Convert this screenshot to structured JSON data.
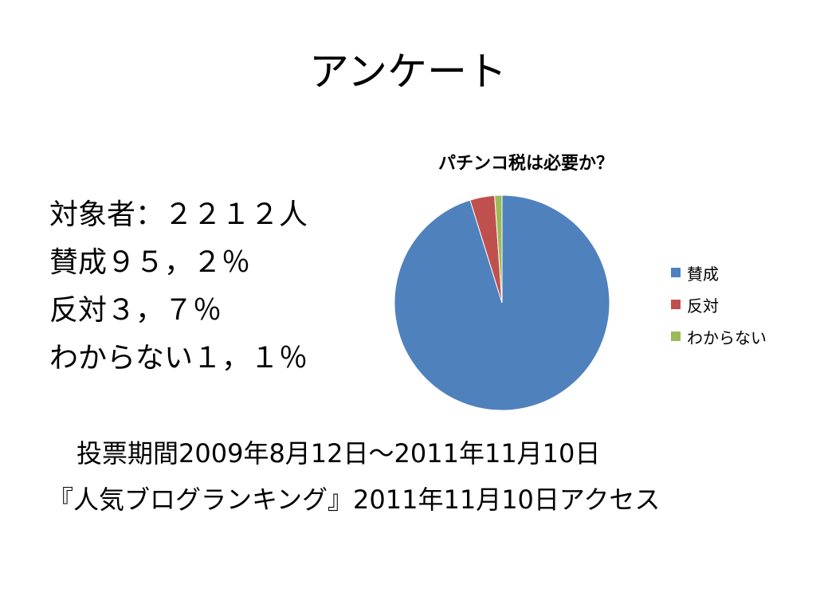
{
  "slide": {
    "title": "アンケート"
  },
  "stats": [
    "対象者：２２１２人",
    "賛成９５，２％",
    "反対３，７％",
    "わからない１，１％"
  ],
  "footer": {
    "period": "投票期間2009年8月12日～2011年11月10日",
    "source": "『人気ブログランキング』2011年11月10日アクセス"
  },
  "colors": {
    "agree": "#4F81BD",
    "disagree": "#C0504D",
    "unknown": "#9BBB59"
  },
  "chart_data": {
    "type": "pie",
    "title": "パチンコ税は必要か？",
    "categories": [
      "賛成",
      "反対",
      "わからない"
    ],
    "values": [
      95.2,
      3.7,
      1.1
    ],
    "colors": [
      "#4F81BD",
      "#C0504D",
      "#9BBB59"
    ],
    "start": "12 o'clock",
    "direction": "clockwise",
    "legend_position": "right"
  }
}
